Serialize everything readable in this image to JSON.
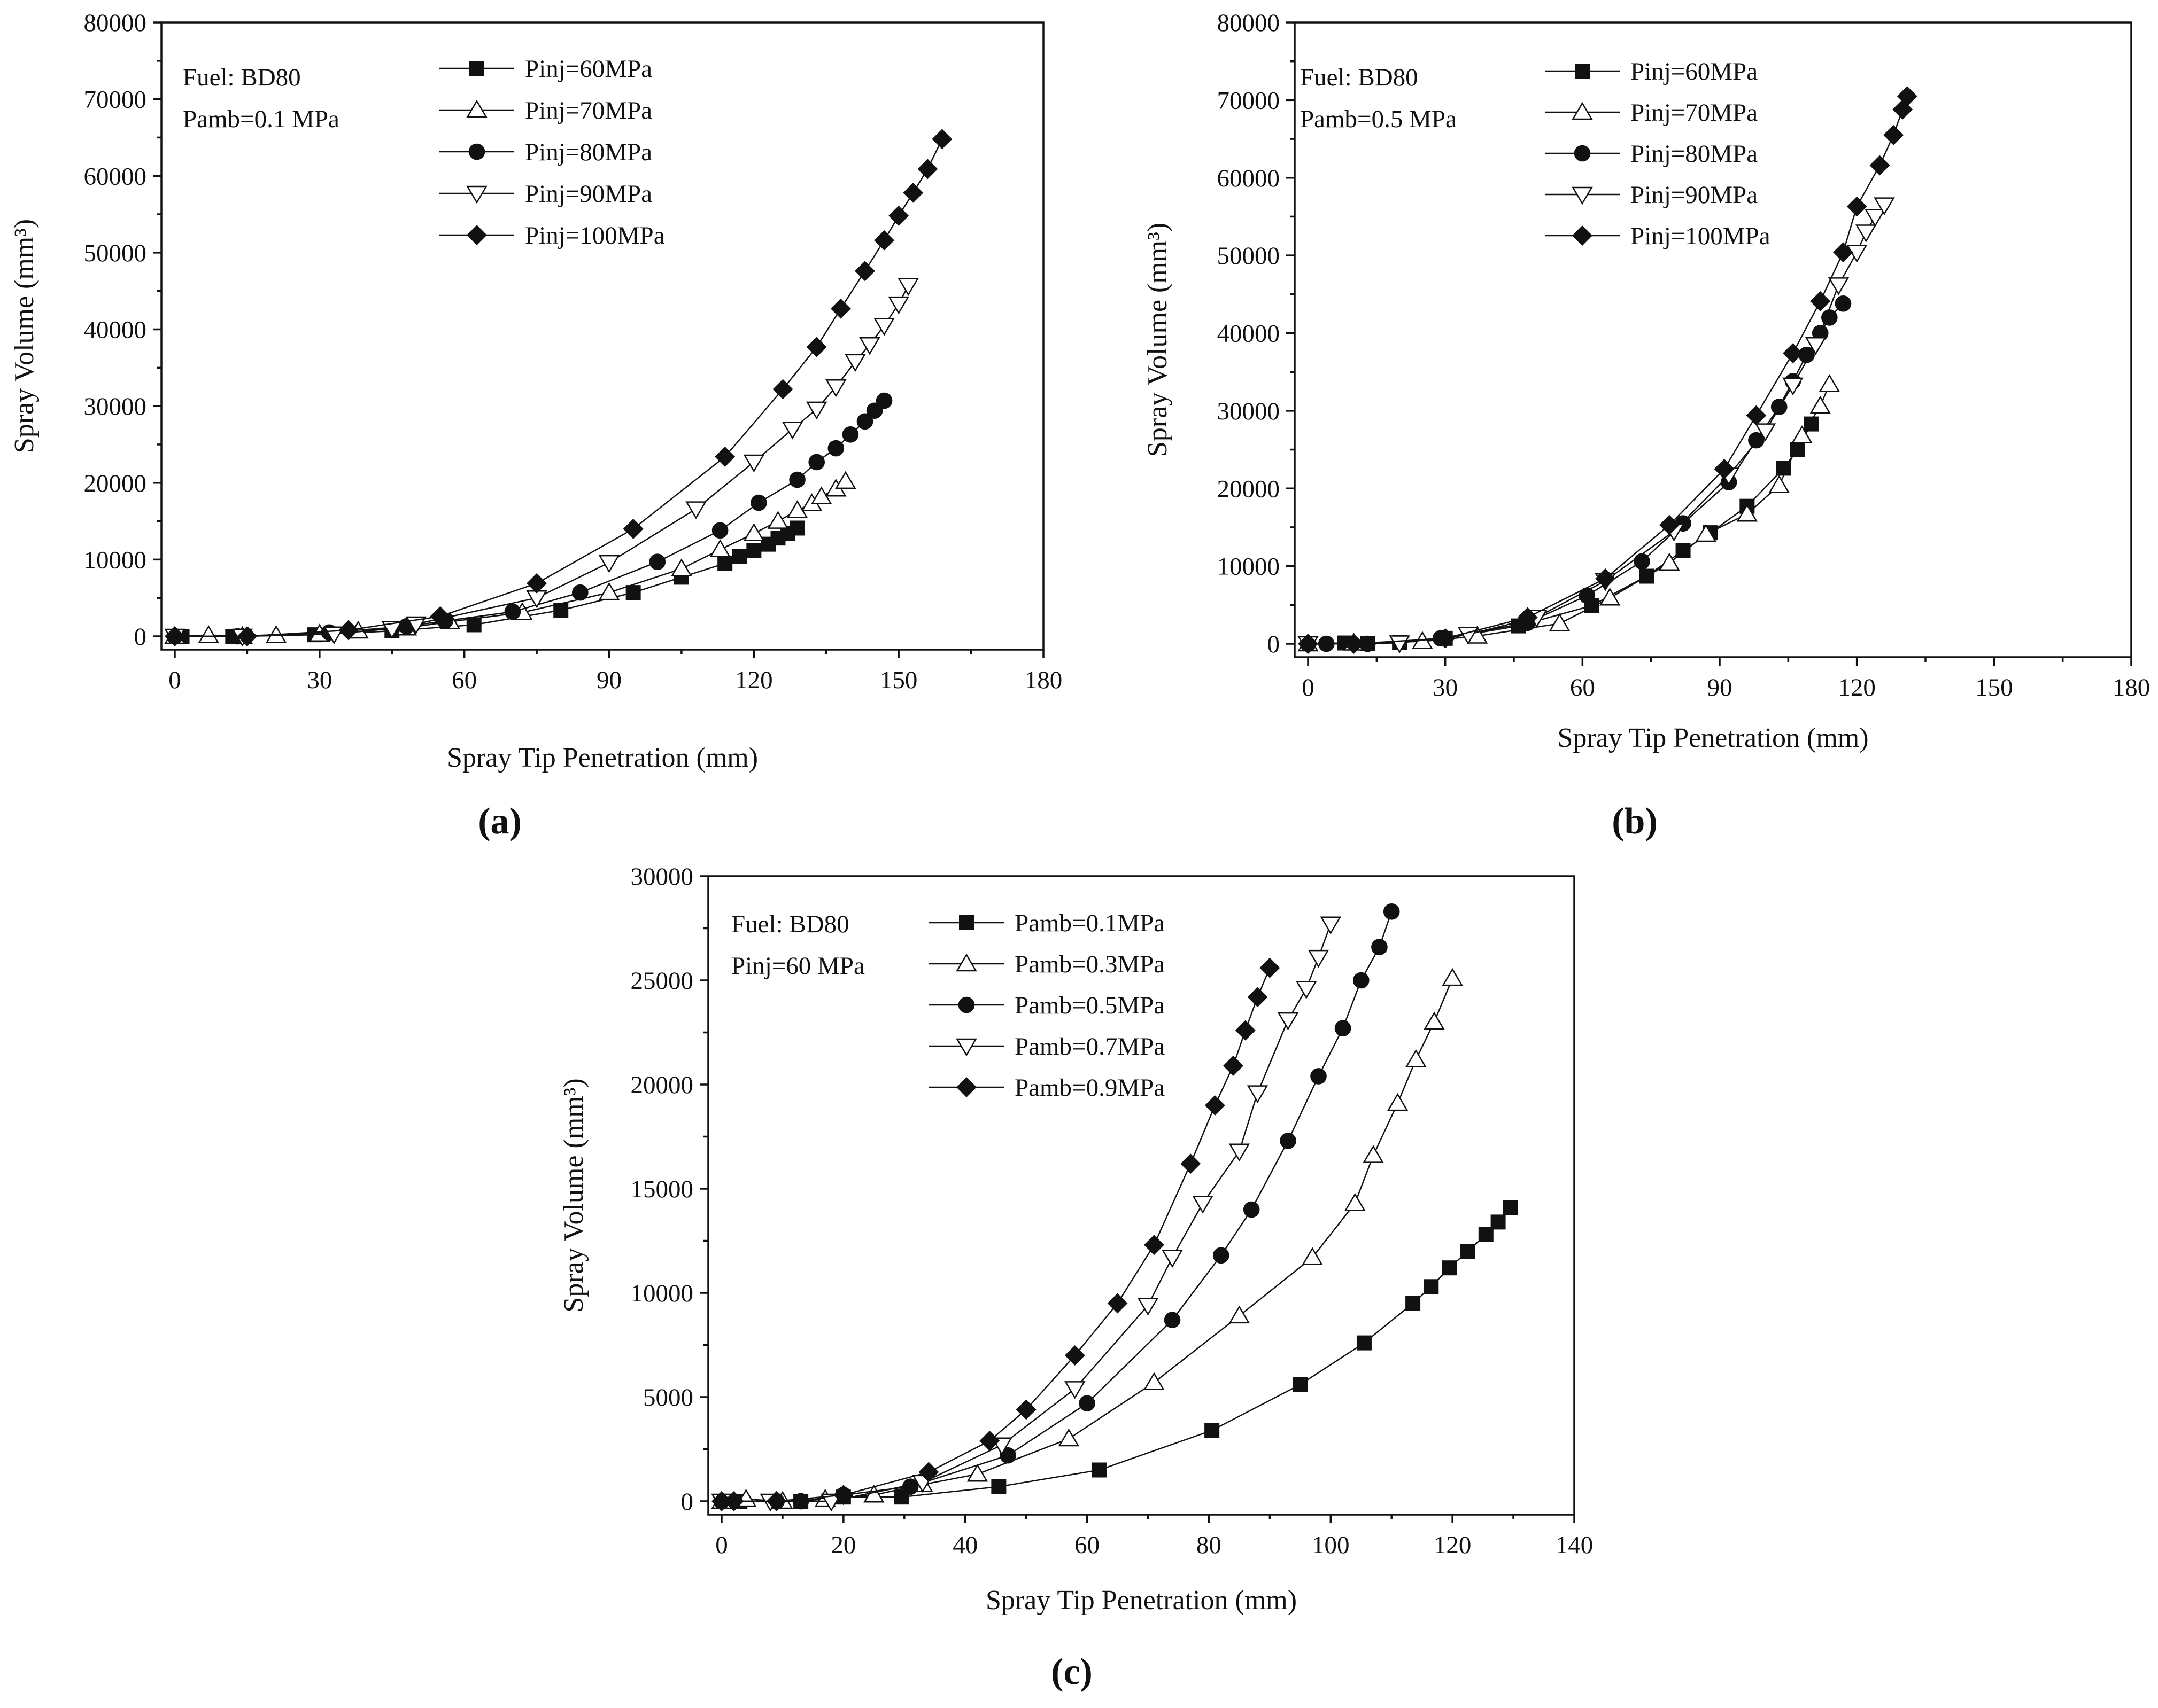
{
  "chart_data": [
    {
      "type": "line",
      "panel_label": "(a)",
      "annotation": [
        "Fuel: BD80",
        "Pamb=0.1 MPa"
      ],
      "xlabel": "Spray Tip Penetration (mm)",
      "ylabel": "Spray Volume (mm³)",
      "xlim": [
        0,
        180
      ],
      "ylim": [
        0,
        80000
      ],
      "xticks": [
        "0",
        "30",
        "60",
        "90",
        "120",
        "150",
        "180"
      ],
      "yticks": [
        "0",
        "10000",
        "20000",
        "30000",
        "40000",
        "50000",
        "60000",
        "70000",
        "80000"
      ],
      "legend_position": "top-left",
      "series": [
        {
          "name": "Pinj=60MPa",
          "marker": "square-filled",
          "x": [
            0,
            1.5,
            12,
            14,
            29,
            45,
            62,
            80,
            95,
            105,
            114,
            117,
            120,
            123,
            125,
            127,
            129
          ],
          "y": [
            0,
            0,
            0,
            0,
            200,
            700,
            1500,
            3400,
            5700,
            7700,
            9500,
            10400,
            11200,
            12000,
            12800,
            13400,
            14100
          ]
        },
        {
          "name": "Pinj=70MPa",
          "marker": "triangle-up-open",
          "x": [
            0,
            7,
            14,
            21,
            30,
            38,
            48,
            57,
            72,
            90,
            105,
            113,
            120,
            125,
            129,
            132,
            134,
            137,
            139
          ],
          "y": [
            0,
            100,
            0,
            100,
            300,
            700,
            1100,
            1900,
            3100,
            5700,
            8800,
            11300,
            13400,
            15000,
            16400,
            17300,
            18200,
            19200,
            20200
          ]
        },
        {
          "name": "Pinj=80MPa",
          "marker": "circle-filled",
          "x": [
            0,
            13,
            32,
            48,
            56,
            70,
            84,
            100,
            113,
            121,
            129,
            133,
            137,
            140,
            143,
            145,
            147
          ],
          "y": [
            0,
            0,
            500,
            1300,
            2000,
            3200,
            5700,
            9700,
            13800,
            17400,
            20400,
            22700,
            24500,
            26300,
            28000,
            29400,
            30700
          ]
        },
        {
          "name": "Pinj=90MPa",
          "marker": "triangle-down-open",
          "x": [
            0,
            14,
            33,
            45,
            50,
            75,
            90,
            108,
            120,
            128,
            133,
            137,
            141,
            144,
            147,
            150,
            152
          ],
          "y": [
            0,
            0,
            300,
            1000,
            1600,
            5000,
            9600,
            16600,
            22700,
            27000,
            29600,
            32500,
            35800,
            38000,
            40500,
            43300,
            45700
          ]
        },
        {
          "name": "Pinj=100MPa",
          "marker": "diamond-filled",
          "x": [
            0,
            15,
            36,
            55,
            75,
            95,
            114,
            126,
            133,
            138,
            143,
            147,
            150,
            153,
            156,
            159
          ],
          "y": [
            0,
            0,
            800,
            2600,
            6900,
            14000,
            23400,
            32200,
            37700,
            42700,
            47600,
            51600,
            54800,
            57800,
            60900,
            64800
          ]
        }
      ]
    },
    {
      "type": "line",
      "panel_label": "(b)",
      "annotation": [
        "Fuel: BD80",
        "Pamb=0.5 MPa"
      ],
      "xlabel": "Spray Tip Penetration (mm)",
      "ylabel": "Spray Volume (mm³)",
      "xlim": [
        0,
        180
      ],
      "ylim": [
        0,
        80000
      ],
      "xticks": [
        "0",
        "30",
        "60",
        "90",
        "120",
        "150",
        "180"
      ],
      "yticks": [
        "0",
        "10000",
        "20000",
        "30000",
        "40000",
        "50000",
        "60000",
        "70000",
        "80000"
      ],
      "legend_position": "top-left",
      "series": [
        {
          "name": "Pinj=60MPa",
          "marker": "square-filled",
          "x": [
            0,
            8,
            13,
            20,
            30,
            46,
            62,
            74,
            82,
            88,
            96,
            104,
            107,
            110
          ],
          "y": [
            0,
            100,
            0,
            200,
            700,
            2300,
            4900,
            8700,
            12000,
            14300,
            17700,
            22600,
            25000,
            28300
          ]
        },
        {
          "name": "Pinj=70MPa",
          "marker": "triangle-up-open",
          "x": [
            0,
            10,
            25,
            37,
            55,
            66,
            79,
            87,
            96,
            103,
            108,
            112,
            114
          ],
          "y": [
            0,
            100,
            300,
            1000,
            2600,
            5900,
            10400,
            14100,
            16700,
            20400,
            26800,
            30600,
            33400
          ]
        },
        {
          "name": "Pinj=80MPa",
          "marker": "circle-filled",
          "x": [
            0,
            4,
            13,
            29,
            48,
            61,
            73,
            82,
            92,
            98,
            103,
            106,
            109,
            112,
            114,
            117
          ],
          "y": [
            0,
            0,
            0,
            700,
            2700,
            6200,
            10600,
            15500,
            20800,
            26200,
            30500,
            33800,
            37200,
            40000,
            42000,
            43800
          ]
        },
        {
          "name": "Pinj=90MPa",
          "marker": "triangle-down-open",
          "x": [
            0,
            20,
            35,
            50,
            65,
            80,
            92,
            100,
            106,
            111,
            116,
            120,
            122,
            124,
            126
          ],
          "y": [
            0,
            100,
            1200,
            3400,
            8100,
            14500,
            21700,
            27400,
            33300,
            38500,
            46200,
            50400,
            53000,
            55000,
            56500
          ]
        },
        {
          "name": "Pinj=100MPa",
          "marker": "diamond-filled",
          "x": [
            0,
            10,
            30,
            48,
            65,
            79,
            91,
            98,
            106,
            112,
            117,
            120,
            125,
            128,
            130,
            131
          ],
          "y": [
            0,
            0,
            700,
            3400,
            8400,
            15300,
            22500,
            29400,
            37400,
            44100,
            50400,
            56300,
            61600,
            65500,
            68800,
            70500
          ]
        }
      ]
    },
    {
      "type": "line",
      "panel_label": "(c)",
      "annotation": [
        "Fuel: BD80",
        "Pinj=60 MPa"
      ],
      "xlabel": "Spray Tip Penetration (mm)",
      "ylabel": "Spray Volume (mm³)",
      "xlim": [
        0,
        140
      ],
      "ylim": [
        0,
        30000
      ],
      "xticks": [
        "0",
        "20",
        "40",
        "60",
        "80",
        "100",
        "120",
        "140"
      ],
      "yticks": [
        "0",
        "5000",
        "10000",
        "15000",
        "20000",
        "25000",
        "30000"
      ],
      "legend_position": "top-left",
      "series": [
        {
          "name": "Pamb=0.1MPa",
          "marker": "square-filled",
          "x": [
            0,
            1,
            3,
            9,
            13,
            20,
            29.5,
            45.5,
            62,
            80.5,
            95,
            105.5,
            113.5,
            116.5,
            119.5,
            122.5,
            125.5,
            127.5,
            129.5
          ],
          "y": [
            0,
            0,
            0,
            0,
            0,
            200,
            200,
            700,
            1500,
            3400,
            5600,
            7600,
            9500,
            10300,
            11200,
            12000,
            12800,
            13400,
            14100
          ]
        },
        {
          "name": "Pamb=0.3MPa",
          "marker": "triangle-up-open",
          "x": [
            0,
            4,
            10,
            17,
            25,
            33,
            42,
            57,
            71,
            85,
            97,
            104,
            107,
            111,
            114,
            117,
            120
          ],
          "y": [
            0,
            100,
            0,
            100,
            300,
            800,
            1300,
            3000,
            5700,
            8900,
            11700,
            14300,
            16600,
            19100,
            21200,
            23000,
            25100
          ]
        },
        {
          "name": "Pamb=0.5MPa",
          "marker": "circle-filled",
          "x": [
            0,
            9,
            13,
            20,
            31,
            47,
            60,
            74,
            82,
            87,
            93,
            98,
            102,
            105,
            108,
            110
          ],
          "y": [
            0,
            0,
            0,
            300,
            700,
            2200,
            4700,
            8700,
            11800,
            14000,
            17300,
            20400,
            22700,
            25000,
            26600,
            28300
          ]
        },
        {
          "name": "Pamb=0.7MPa",
          "marker": "triangle-down-open",
          "x": [
            0,
            8,
            18,
            33,
            46,
            58,
            70,
            74,
            79,
            85,
            88,
            93,
            96,
            98,
            100
          ],
          "y": [
            0,
            0,
            0,
            900,
            2700,
            5400,
            9400,
            11700,
            14300,
            16800,
            19600,
            23100,
            24600,
            26100,
            27700
          ]
        },
        {
          "name": "Pamb=0.9MPa",
          "marker": "diamond-filled",
          "x": [
            0,
            2,
            9,
            20,
            34,
            44,
            50,
            58,
            65,
            71,
            77,
            81,
            84,
            86,
            88,
            90
          ],
          "y": [
            0,
            0,
            0,
            300,
            1400,
            2900,
            4400,
            7000,
            9500,
            12300,
            16200,
            19000,
            20900,
            22600,
            24200,
            25600
          ]
        }
      ]
    }
  ]
}
